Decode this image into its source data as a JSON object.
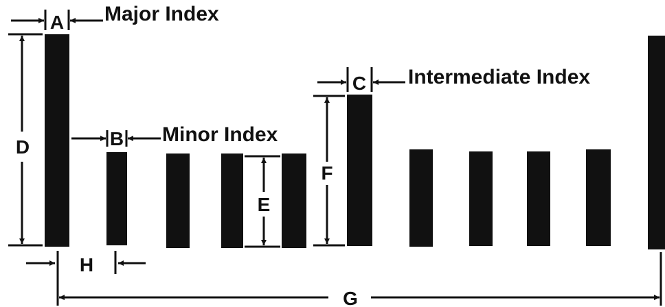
{
  "captions": {
    "major": "Major Index",
    "minor": "Minor Index",
    "intermediate": "Intermediate Index"
  },
  "dimensions": {
    "a": "A",
    "b": "B",
    "c": "C",
    "d": "D",
    "e": "E",
    "f": "F",
    "g": "G",
    "h": "H"
  },
  "colors": {
    "ink": "#111111",
    "background": "#ffffff"
  }
}
